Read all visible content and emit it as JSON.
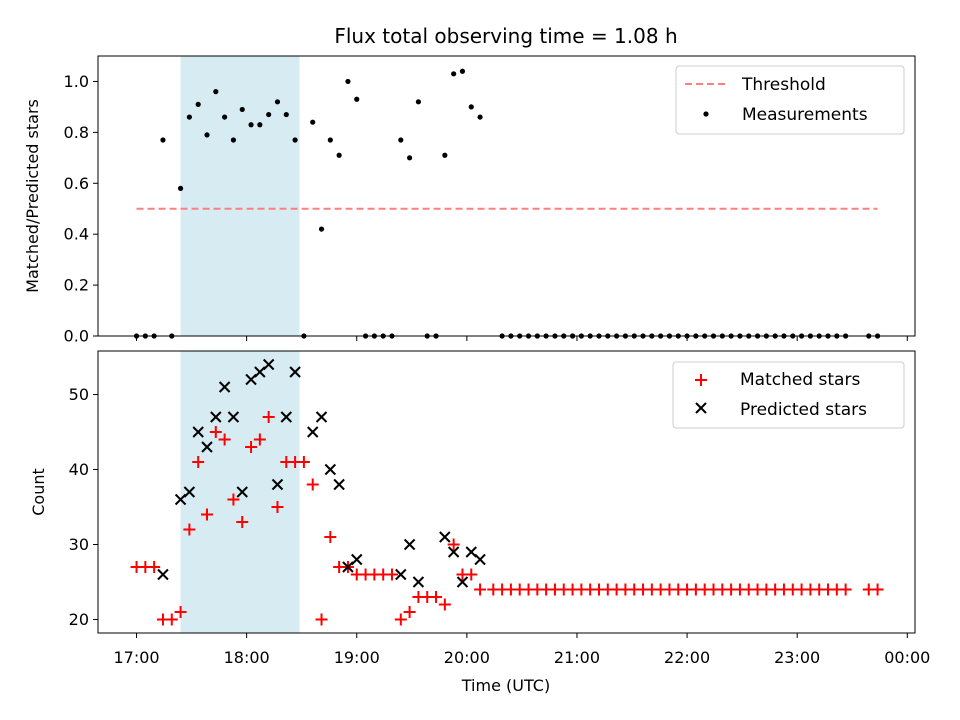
{
  "chart_data": [
    {
      "type": "scatter",
      "title": "Flux total observing time = 1.08 h",
      "ylabel": "Matched/Predicted stars",
      "xlabel": "",
      "x_unit": "hours UTC",
      "xlim": [
        16.65,
        24.07
      ],
      "ylim": [
        0,
        1.1
      ],
      "yticks": [
        0.0,
        0.2,
        0.4,
        0.6,
        0.8,
        1.0
      ],
      "ytick_labels": [
        "0.0",
        "0.2",
        "0.4",
        "0.6",
        "0.8",
        "1.0"
      ],
      "shaded_span": {
        "start": 17.4,
        "end": 18.48,
        "color": "#add8e6"
      },
      "legend": {
        "position": "top-right",
        "entries": [
          {
            "label": "Threshold",
            "kind": "dashed-line",
            "color": "#ff7f7f"
          },
          {
            "label": "Measurements",
            "kind": "dot",
            "color": "#000000"
          }
        ]
      },
      "threshold": {
        "value": 0.5,
        "x_start": 17.0,
        "x_end": 23.73,
        "color": "#ff7f7f"
      },
      "series": [
        {
          "name": "Measurements",
          "marker": "dot",
          "color": "#000000",
          "points": [
            [
              17.0,
              0.0
            ],
            [
              17.08,
              0.0
            ],
            [
              17.16,
              0.0
            ],
            [
              17.24,
              0.77
            ],
            [
              17.32,
              0.0
            ],
            [
              17.4,
              0.58
            ],
            [
              17.48,
              0.86
            ],
            [
              17.56,
              0.91
            ],
            [
              17.64,
              0.79
            ],
            [
              17.72,
              0.96
            ],
            [
              17.8,
              0.86
            ],
            [
              17.88,
              0.77
            ],
            [
              17.96,
              0.89
            ],
            [
              18.04,
              0.83
            ],
            [
              18.12,
              0.83
            ],
            [
              18.2,
              0.87
            ],
            [
              18.28,
              0.92
            ],
            [
              18.36,
              0.87
            ],
            [
              18.44,
              0.77
            ],
            [
              18.52,
              0.0
            ],
            [
              18.6,
              0.84
            ],
            [
              18.68,
              0.42
            ],
            [
              18.76,
              0.77
            ],
            [
              18.84,
              0.71
            ],
            [
              18.92,
              1.0
            ],
            [
              19.0,
              0.93
            ],
            [
              19.08,
              0.0
            ],
            [
              19.16,
              0.0
            ],
            [
              19.24,
              0.0
            ],
            [
              19.32,
              0.0
            ],
            [
              19.4,
              0.77
            ],
            [
              19.48,
              0.7
            ],
            [
              19.56,
              0.92
            ],
            [
              19.64,
              0.0
            ],
            [
              19.72,
              0.0
            ],
            [
              19.8,
              0.71
            ],
            [
              19.88,
              1.03
            ],
            [
              19.96,
              1.04
            ],
            [
              20.04,
              0.9
            ],
            [
              20.12,
              0.86
            ],
            [
              20.32,
              0.0
            ],
            [
              20.4,
              0.0
            ],
            [
              20.48,
              0.0
            ],
            [
              20.56,
              0.0
            ],
            [
              20.64,
              0.0
            ],
            [
              20.72,
              0.0
            ],
            [
              20.8,
              0.0
            ],
            [
              20.88,
              0.0
            ],
            [
              20.96,
              0.0
            ],
            [
              21.04,
              0.0
            ],
            [
              21.12,
              0.0
            ],
            [
              21.2,
              0.0
            ],
            [
              21.28,
              0.0
            ],
            [
              21.36,
              0.0
            ],
            [
              21.44,
              0.0
            ],
            [
              21.52,
              0.0
            ],
            [
              21.6,
              0.0
            ],
            [
              21.68,
              0.0
            ],
            [
              21.76,
              0.0
            ],
            [
              21.84,
              0.0
            ],
            [
              21.92,
              0.0
            ],
            [
              22.0,
              0.0
            ],
            [
              22.08,
              0.0
            ],
            [
              22.16,
              0.0
            ],
            [
              22.24,
              0.0
            ],
            [
              22.32,
              0.0
            ],
            [
              22.4,
              0.0
            ],
            [
              22.48,
              0.0
            ],
            [
              22.56,
              0.0
            ],
            [
              22.64,
              0.0
            ],
            [
              22.72,
              0.0
            ],
            [
              22.8,
              0.0
            ],
            [
              22.88,
              0.0
            ],
            [
              22.96,
              0.0
            ],
            [
              23.04,
              0.0
            ],
            [
              23.12,
              0.0
            ],
            [
              23.2,
              0.0
            ],
            [
              23.28,
              0.0
            ],
            [
              23.36,
              0.0
            ],
            [
              23.44,
              0.0
            ],
            [
              23.65,
              0.0
            ],
            [
              23.73,
              0.0
            ]
          ]
        }
      ]
    },
    {
      "type": "scatter",
      "title": "",
      "ylabel": "Count",
      "xlabel": "Time (UTC)",
      "x_unit": "hours UTC",
      "xlim": [
        16.65,
        24.07
      ],
      "ylim": [
        18.2,
        55.8
      ],
      "xticks": [
        17,
        18,
        19,
        20,
        21,
        22,
        23,
        24
      ],
      "xtick_labels": [
        "17:00",
        "18:00",
        "19:00",
        "20:00",
        "21:00",
        "22:00",
        "23:00",
        "00:00"
      ],
      "yticks": [
        20,
        30,
        40,
        50
      ],
      "ytick_labels": [
        "20",
        "30",
        "40",
        "50"
      ],
      "shaded_span": {
        "start": 17.4,
        "end": 18.48,
        "color": "#add8e6"
      },
      "legend": {
        "position": "top-right",
        "entries": [
          {
            "label": "Matched stars",
            "kind": "plus",
            "color": "#ff0000"
          },
          {
            "label": "Predicted stars",
            "kind": "x",
            "color": "#000000"
          }
        ]
      },
      "series": [
        {
          "name": "Matched stars",
          "marker": "plus",
          "color": "#ff0000",
          "points": [
            [
              17.0,
              27
            ],
            [
              17.08,
              27
            ],
            [
              17.16,
              27
            ],
            [
              17.24,
              20
            ],
            [
              17.32,
              20
            ],
            [
              17.4,
              21
            ],
            [
              17.48,
              32
            ],
            [
              17.56,
              41
            ],
            [
              17.64,
              34
            ],
            [
              17.72,
              45
            ],
            [
              17.8,
              44
            ],
            [
              17.88,
              36
            ],
            [
              17.96,
              33
            ],
            [
              18.04,
              43
            ],
            [
              18.12,
              44
            ],
            [
              18.2,
              47
            ],
            [
              18.28,
              35
            ],
            [
              18.36,
              41
            ],
            [
              18.44,
              41
            ],
            [
              18.52,
              41
            ],
            [
              18.6,
              38
            ],
            [
              18.68,
              20
            ],
            [
              18.76,
              31
            ],
            [
              18.84,
              27
            ],
            [
              18.92,
              27
            ],
            [
              19.0,
              26
            ],
            [
              19.08,
              26
            ],
            [
              19.16,
              26
            ],
            [
              19.24,
              26
            ],
            [
              19.32,
              26
            ],
            [
              19.4,
              20
            ],
            [
              19.48,
              21
            ],
            [
              19.56,
              23
            ],
            [
              19.64,
              23
            ],
            [
              19.72,
              23
            ],
            [
              19.8,
              22
            ],
            [
              19.88,
              30
            ],
            [
              19.96,
              26
            ],
            [
              20.04,
              26
            ],
            [
              20.12,
              24
            ],
            [
              20.24,
              24
            ],
            [
              20.32,
              24
            ],
            [
              20.4,
              24
            ],
            [
              20.48,
              24
            ],
            [
              20.56,
              24
            ],
            [
              20.64,
              24
            ],
            [
              20.72,
              24
            ],
            [
              20.8,
              24
            ],
            [
              20.88,
              24
            ],
            [
              20.96,
              24
            ],
            [
              21.04,
              24
            ],
            [
              21.12,
              24
            ],
            [
              21.2,
              24
            ],
            [
              21.28,
              24
            ],
            [
              21.36,
              24
            ],
            [
              21.44,
              24
            ],
            [
              21.52,
              24
            ],
            [
              21.6,
              24
            ],
            [
              21.68,
              24
            ],
            [
              21.76,
              24
            ],
            [
              21.84,
              24
            ],
            [
              21.92,
              24
            ],
            [
              22.0,
              24
            ],
            [
              22.08,
              24
            ],
            [
              22.16,
              24
            ],
            [
              22.24,
              24
            ],
            [
              22.32,
              24
            ],
            [
              22.4,
              24
            ],
            [
              22.48,
              24
            ],
            [
              22.56,
              24
            ],
            [
              22.64,
              24
            ],
            [
              22.72,
              24
            ],
            [
              22.8,
              24
            ],
            [
              22.88,
              24
            ],
            [
              22.96,
              24
            ],
            [
              23.04,
              24
            ],
            [
              23.12,
              24
            ],
            [
              23.2,
              24
            ],
            [
              23.28,
              24
            ],
            [
              23.36,
              24
            ],
            [
              23.44,
              24
            ],
            [
              23.65,
              24
            ],
            [
              23.73,
              24
            ]
          ]
        },
        {
          "name": "Predicted stars",
          "marker": "x",
          "color": "#000000",
          "points": [
            [
              17.24,
              26
            ],
            [
              17.4,
              36
            ],
            [
              17.48,
              37
            ],
            [
              17.56,
              45
            ],
            [
              17.64,
              43
            ],
            [
              17.72,
              47
            ],
            [
              17.8,
              51
            ],
            [
              17.88,
              47
            ],
            [
              17.96,
              37
            ],
            [
              18.04,
              52
            ],
            [
              18.12,
              53
            ],
            [
              18.2,
              54
            ],
            [
              18.28,
              38
            ],
            [
              18.36,
              47
            ],
            [
              18.44,
              53
            ],
            [
              18.6,
              45
            ],
            [
              18.68,
              47
            ],
            [
              18.76,
              40
            ],
            [
              18.84,
              38
            ],
            [
              18.92,
              27
            ],
            [
              19.0,
              28
            ],
            [
              19.4,
              26
            ],
            [
              19.48,
              30
            ],
            [
              19.56,
              25
            ],
            [
              19.8,
              31
            ],
            [
              19.88,
              29
            ],
            [
              19.96,
              25
            ],
            [
              20.04,
              29
            ],
            [
              20.12,
              28
            ]
          ]
        }
      ]
    }
  ]
}
